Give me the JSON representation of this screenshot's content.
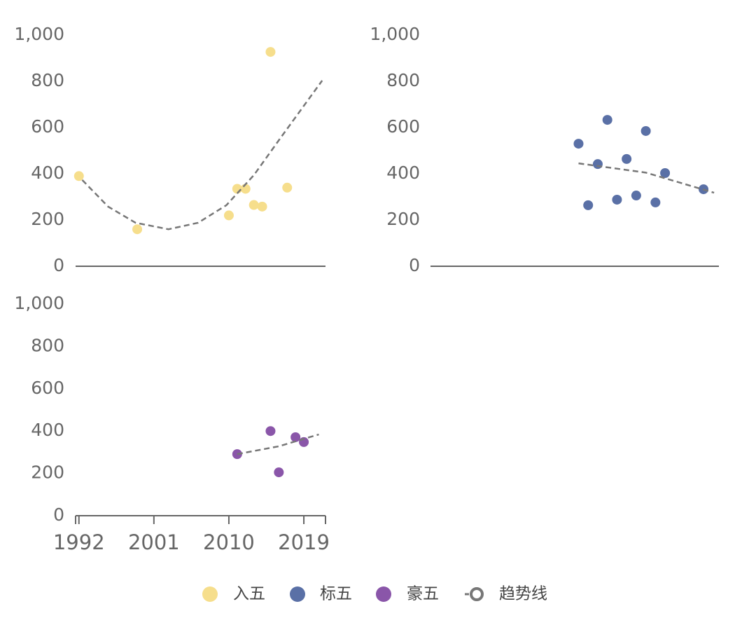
{
  "chart_data": [
    {
      "type": "scatter",
      "xlim": [
        1991.6,
        2021.6
      ],
      "ylim": [
        0,
        1000
      ],
      "yticks": [
        0,
        200,
        400,
        600,
        800,
        {
          "value": 1000,
          "label": "1,000"
        }
      ],
      "series": [
        {
          "name": "入五",
          "color": "#f6de8c",
          "x": [
            1992,
            1999,
            2010,
            2011,
            2012,
            2013,
            2014,
            2015,
            2017
          ],
          "values": [
            390,
            160,
            220,
            335,
            335,
            265,
            258,
            927,
            340
          ]
        },
        {
          "name": "趋势线",
          "color": "#777777",
          "dashed": true,
          "x": [
            1992.4,
            1995.5,
            1998.8,
            2002.75,
            2006.3,
            2009.7,
            2013,
            2016.3,
            2021.2
          ],
          "values": [
            373,
            258,
            188,
            160,
            188,
            264,
            394,
            560,
            803
          ]
        }
      ]
    },
    {
      "type": "scatter",
      "xlim": [
        1991.6,
        2021.6
      ],
      "ylim": [
        0,
        1000
      ],
      "yticks": [
        0,
        200,
        400,
        600,
        800,
        {
          "value": 1000,
          "label": "1,000"
        }
      ],
      "series": [
        {
          "name": "标五",
          "color": "#5a70a6",
          "x": [
            2007,
            2008,
            2009,
            2010,
            2011,
            2012,
            2013,
            2014,
            2015,
            2016,
            2020
          ],
          "values": [
            530,
            264,
            442,
            633,
            288,
            464,
            306,
            585,
            276,
            403,
            333
          ]
        },
        {
          "name": "趋势线",
          "color": "#777777",
          "dashed": true,
          "x": [
            2007,
            2014,
            2021.1
          ],
          "values": [
            445,
            405,
            318
          ]
        }
      ]
    },
    {
      "type": "scatter",
      "xlim": [
        1991.6,
        2021.6
      ],
      "ylim": [
        0,
        1000
      ],
      "xticks": [
        1992,
        2001,
        2010,
        2019
      ],
      "yticks": [
        0,
        200,
        400,
        600,
        800,
        {
          "value": 1000,
          "label": "1,000"
        }
      ],
      "series": [
        {
          "name": "豪五",
          "color": "#8a56a9",
          "x": [
            2011,
            2015,
            2016,
            2018,
            2019
          ],
          "values": [
            291,
            400,
            205,
            371,
            348
          ]
        },
        {
          "name": "趋势线",
          "color": "#777777",
          "dashed": true,
          "x": [
            2011,
            2016,
            2020.8
          ],
          "values": [
            291,
            328,
            384
          ]
        }
      ]
    }
  ]
}
